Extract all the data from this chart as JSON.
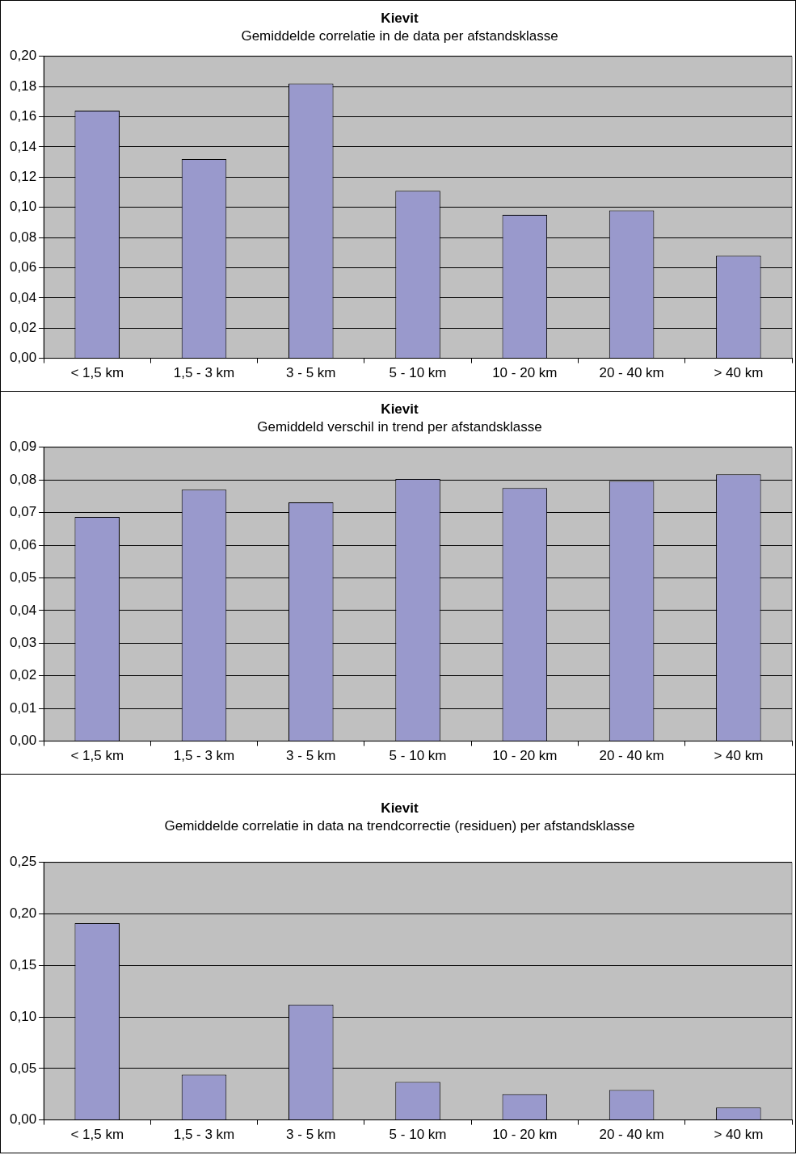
{
  "chart_data": [
    {
      "type": "bar",
      "title": "Kievit",
      "subtitle": "Gemiddelde correlatie in de data per afstandsklasse",
      "categories": [
        "< 1,5 km",
        "1,5 - 3 km",
        "3 - 5 km",
        "5 - 10 km",
        "10 - 20 km",
        "20 - 40 km",
        "> 40 km"
      ],
      "values": [
        0.164,
        0.132,
        0.182,
        0.111,
        0.095,
        0.098,
        0.068
      ],
      "color": "#9999cc",
      "ylim": [
        0,
        0.2
      ],
      "yticks": [
        {
          "value": 0,
          "label": "0,00"
        },
        {
          "value": 0.02,
          "label": "0,02"
        },
        {
          "value": 0.04,
          "label": "0,04"
        },
        {
          "value": 0.06,
          "label": "0,06"
        },
        {
          "value": 0.08,
          "label": "0,08"
        },
        {
          "value": 0.1,
          "label": "0,10"
        },
        {
          "value": 0.12,
          "label": "0,12"
        },
        {
          "value": 0.14,
          "label": "0,14"
        },
        {
          "value": 0.16,
          "label": "0,16"
        },
        {
          "value": 0.18,
          "label": "0,18"
        },
        {
          "value": 0.2,
          "label": "0,20"
        }
      ],
      "grid": "y",
      "legend": false
    },
    {
      "type": "bar",
      "title": "Kievit",
      "subtitle": "Gemiddeld verschil in trend per afstandsklasse",
      "categories": [
        "< 1,5 km",
        "1,5 - 3 km",
        "3 - 5 km",
        "5 - 10 km",
        "10 - 20 km",
        "20 - 40 km",
        "> 40 km"
      ],
      "values": [
        0.0687,
        0.077,
        0.0731,
        0.0803,
        0.0775,
        0.0797,
        0.0817
      ],
      "color": "#9999cc",
      "ylim": [
        0,
        0.09
      ],
      "yticks": [
        {
          "value": 0,
          "label": "0,00"
        },
        {
          "value": 0.01,
          "label": "0,01"
        },
        {
          "value": 0.02,
          "label": "0,02"
        },
        {
          "value": 0.03,
          "label": "0,03"
        },
        {
          "value": 0.04,
          "label": "0,04"
        },
        {
          "value": 0.05,
          "label": "0,05"
        },
        {
          "value": 0.06,
          "label": "0,06"
        },
        {
          "value": 0.07,
          "label": "0,07"
        },
        {
          "value": 0.08,
          "label": "0,08"
        },
        {
          "value": 0.09,
          "label": "0,09"
        }
      ],
      "grid": "y",
      "legend": false
    },
    {
      "type": "bar",
      "title": "Kievit",
      "subtitle": "Gemiddelde correlatie in data na trendcorrectie (residuen) per afstandsklasse",
      "categories": [
        "< 1,5 km",
        "1,5 - 3 km",
        "3 - 5 km",
        "5 - 10 km",
        "10 - 20 km",
        "20 - 40 km",
        "> 40 km"
      ],
      "values": [
        0.191,
        0.044,
        0.112,
        0.037,
        0.025,
        0.029,
        0.012
      ],
      "color": "#9999cc",
      "ylim": [
        0,
        0.25
      ],
      "yticks": [
        {
          "value": 0,
          "label": "0,00"
        },
        {
          "value": 0.05,
          "label": "0,05"
        },
        {
          "value": 0.1,
          "label": "0,10"
        },
        {
          "value": 0.15,
          "label": "0,15"
        },
        {
          "value": 0.2,
          "label": "0,20"
        },
        {
          "value": 0.25,
          "label": "0,25"
        }
      ],
      "grid": "y",
      "legend": false
    }
  ]
}
